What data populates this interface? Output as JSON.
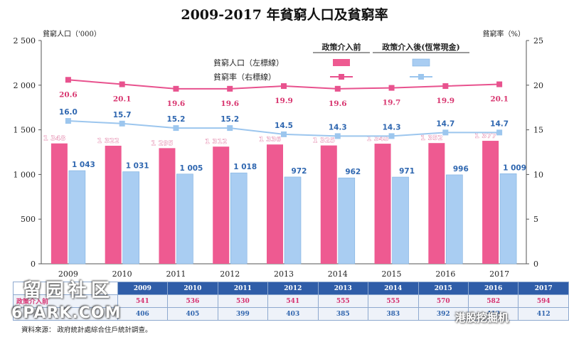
{
  "chart_data": {
    "type": "bar",
    "title": "2009-2017 年貧窮人口及貧窮率",
    "categories": [
      "2009",
      "2010",
      "2011",
      "2012",
      "2013",
      "2014",
      "2015",
      "2016",
      "2017"
    ],
    "ylabel_left": "貧窮人口（'000）",
    "ylabel_right": "貧窮率（%）",
    "ylim_left": [
      0,
      2500
    ],
    "ylim_right": [
      0,
      25
    ],
    "yticks_left": [
      "0",
      "500",
      "1 000",
      "1 500",
      "2 000",
      "2 500"
    ],
    "yticks_right": [
      "0",
      "5",
      "10",
      "15",
      "20",
      "25"
    ],
    "legend_header_before": "政策介入前",
    "legend_header_after": "政策介入後(恆常現金)",
    "legend_row_population": "貧窮人口（左標線）",
    "legend_row_rate": "貧窮率（右標線）",
    "series": [
      {
        "name": "政策介入前",
        "kind": "bar",
        "axis": "left",
        "values": [
          1348,
          1322,
          1295,
          1312,
          1336,
          1325,
          1345,
          1352,
          1377
        ],
        "labels": [
          "1 348",
          "1 322",
          "1 295",
          "1 312",
          "1 336",
          "1 325",
          "1 345",
          "1 352",
          "1 377"
        ]
      },
      {
        "name": "政策介入後(恆常現金)",
        "kind": "bar",
        "axis": "left",
        "values": [
          1043,
          1031,
          1005,
          1018,
          972,
          962,
          971,
          996,
          1009
        ],
        "labels": [
          "1 043",
          "1 031",
          "1 005",
          "1 018",
          "972",
          "962",
          "971",
          "996",
          "1 009"
        ]
      },
      {
        "name": "政策介入前",
        "kind": "line",
        "axis": "right",
        "values": [
          20.6,
          20.1,
          19.6,
          19.6,
          19.9,
          19.6,
          19.7,
          19.9,
          20.1
        ],
        "labels": [
          "20.6",
          "20.1",
          "19.6",
          "19.6",
          "19.9",
          "19.6",
          "19.7",
          "19.9",
          "20.1"
        ]
      },
      {
        "name": "政策介入後(恆常現金)",
        "kind": "line",
        "axis": "right",
        "values": [
          16.0,
          15.7,
          15.2,
          15.2,
          14.5,
          14.3,
          14.3,
          14.7,
          14.7
        ],
        "labels": [
          "16.0",
          "15.7",
          "15.2",
          "15.2",
          "14.5",
          "14.3",
          "14.3",
          "14.7",
          "14.7"
        ]
      }
    ],
    "grid": false,
    "legend": "top-right",
    "colors": {
      "pink": "#ee5a91",
      "pink_line": "#e8528e",
      "blue": "#a9cdf2",
      "blue_line": "#9cc6ee",
      "axis": "#555555"
    }
  },
  "table": {
    "row1_label": "政策介入前",
    "row2_label": "",
    "years": [
      "2009",
      "2010",
      "2011",
      "2012",
      "2013",
      "2014",
      "2015",
      "2016",
      "2017"
    ],
    "row1": [
      "541",
      "536",
      "530",
      "541",
      "555",
      "555",
      "570",
      "582",
      "594"
    ],
    "row2": [
      "406",
      "405",
      "399",
      "403",
      "385",
      "383",
      "392",
      "412",
      "412"
    ]
  },
  "source_note": "資料來源： 政府統計處綜合住戶統計調查。",
  "watermark": {
    "left_top": "留园社区",
    "left_bottom": "6PARK.COM",
    "right": "港股挖掘机"
  }
}
